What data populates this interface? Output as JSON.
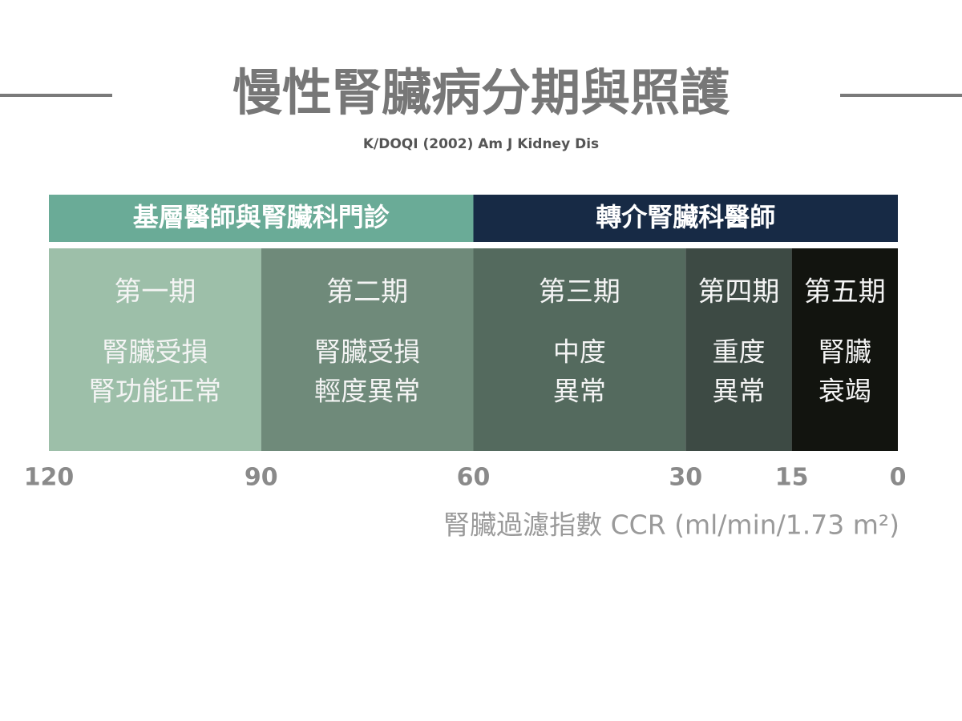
{
  "title": "慢性腎臟病分期與照護",
  "subtitle": "K/DOQI  (2002) Am J Kidney Dis",
  "groups": [
    "基層醫師與腎臟科門診",
    "轉介腎臟科醫師"
  ],
  "stages": [
    {
      "name": "第一期",
      "desc": [
        "腎臟受損",
        "腎功能正常"
      ]
    },
    {
      "name": "第二期",
      "desc": [
        "腎臟受損",
        "輕度異常"
      ]
    },
    {
      "name": "第三期",
      "desc": [
        "中度",
        "異常"
      ]
    },
    {
      "name": "第四期",
      "desc": [
        "重度",
        "異常"
      ]
    },
    {
      "name": "第五期",
      "desc": [
        "腎臟",
        "衰竭"
      ]
    }
  ],
  "axis": {
    "ticks": [
      120,
      90,
      60,
      30,
      15,
      0
    ],
    "label": "腎臟過濾指數 CCR (ml/min/1.73 m²)"
  }
}
